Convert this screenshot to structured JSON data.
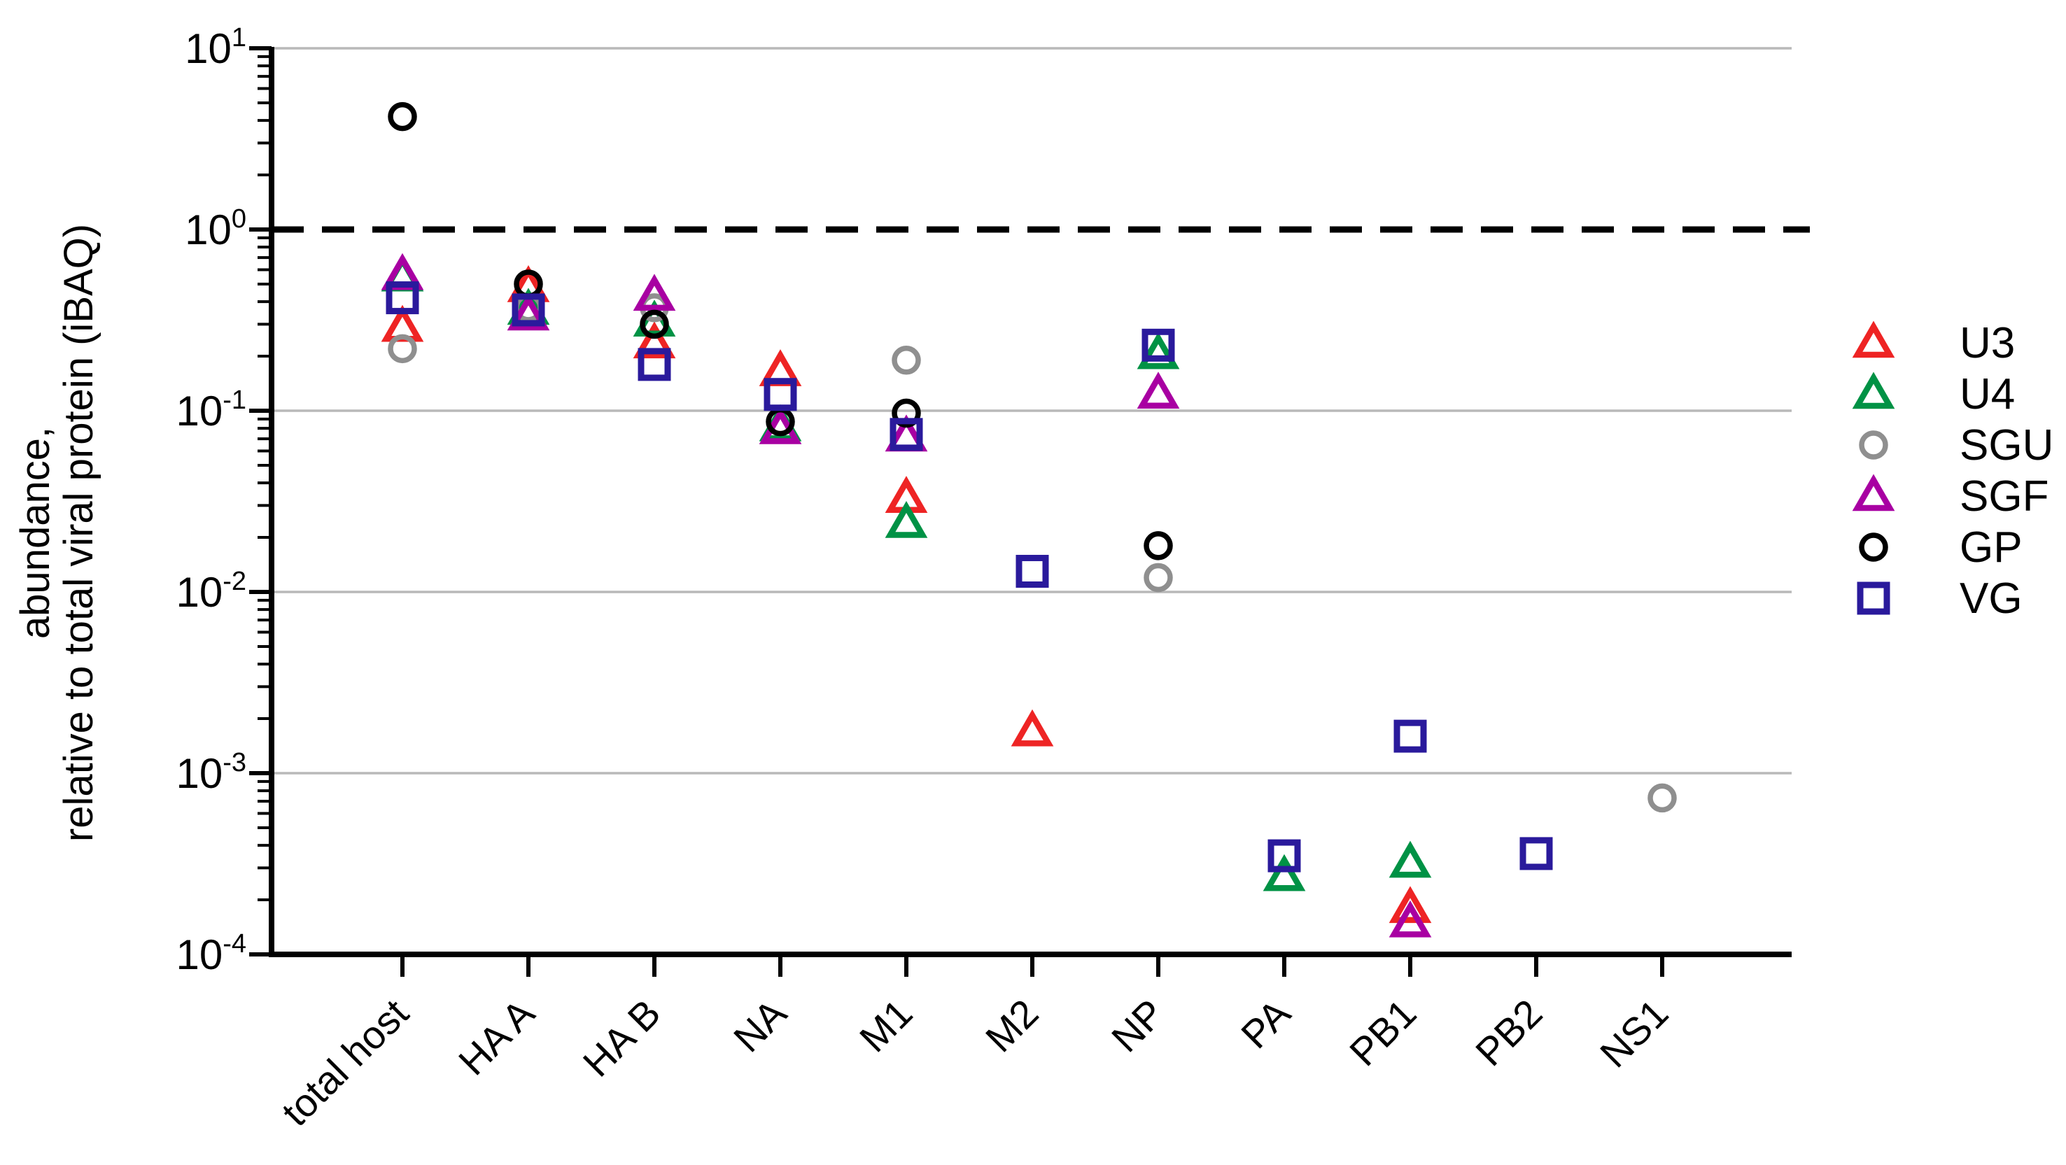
{
  "chart_data": {
    "type": "scatter",
    "title": "",
    "ylabel_lines": [
      "abundance,",
      "relative to total viral protein (iBAQ)"
    ],
    "xlabel": "",
    "y_axis": {
      "scale": "log",
      "min_exponent": -4,
      "max_exponent": 1,
      "tick_exponents": [
        1,
        0,
        -1,
        -2,
        -3,
        -4
      ],
      "gridline_exponents": [
        1,
        -1,
        -2,
        -3
      ],
      "grid_color": "#b9b9b9"
    },
    "reference_line": {
      "value": 1,
      "style": "dashed",
      "color": "#000000"
    },
    "categories": [
      "total host",
      "HA A",
      "HA B",
      "NA",
      "M1",
      "M2",
      "NP",
      "PA",
      "PB1",
      "PB2",
      "NS1"
    ],
    "series": [
      {
        "name": "U3",
        "marker": "triangle",
        "color": "#ee2424",
        "values": [
          0.29,
          0.48,
          0.235,
          0.165,
          0.033,
          0.0017,
          null,
          null,
          0.00018,
          null,
          null
        ]
      },
      {
        "name": "U4",
        "marker": "triangle",
        "color": "#009245",
        "values": [
          0.55,
          0.36,
          0.31,
          0.082,
          0.024,
          null,
          0.205,
          0.00027,
          0.00032,
          null,
          null
        ]
      },
      {
        "name": "SGU",
        "marker": "circle",
        "color": "#8f8f8f",
        "values": [
          0.22,
          0.37,
          0.37,
          null,
          0.19,
          null,
          0.012,
          null,
          null,
          null,
          0.00073
        ]
      },
      {
        "name": "SGF",
        "marker": "triangle",
        "color": "#a800a2",
        "values": [
          0.56,
          0.335,
          0.43,
          0.079,
          0.072,
          null,
          0.124,
          null,
          0.00015,
          null,
          null
        ]
      },
      {
        "name": "GP",
        "marker": "circle",
        "color": "#000000",
        "values": [
          4.2,
          0.5,
          0.3,
          0.087,
          0.097,
          null,
          0.018,
          null,
          null,
          null,
          null
        ]
      },
      {
        "name": "VG",
        "marker": "square",
        "color": "#2a1a9c",
        "values": [
          0.42,
          0.36,
          0.18,
          0.123,
          0.074,
          0.013,
          0.23,
          0.00035,
          0.0016,
          0.00036,
          null
        ]
      }
    ],
    "legend": {
      "position": "right",
      "items": [
        "U3",
        "U4",
        "SGU",
        "SGF",
        "GP",
        "VG"
      ]
    }
  }
}
